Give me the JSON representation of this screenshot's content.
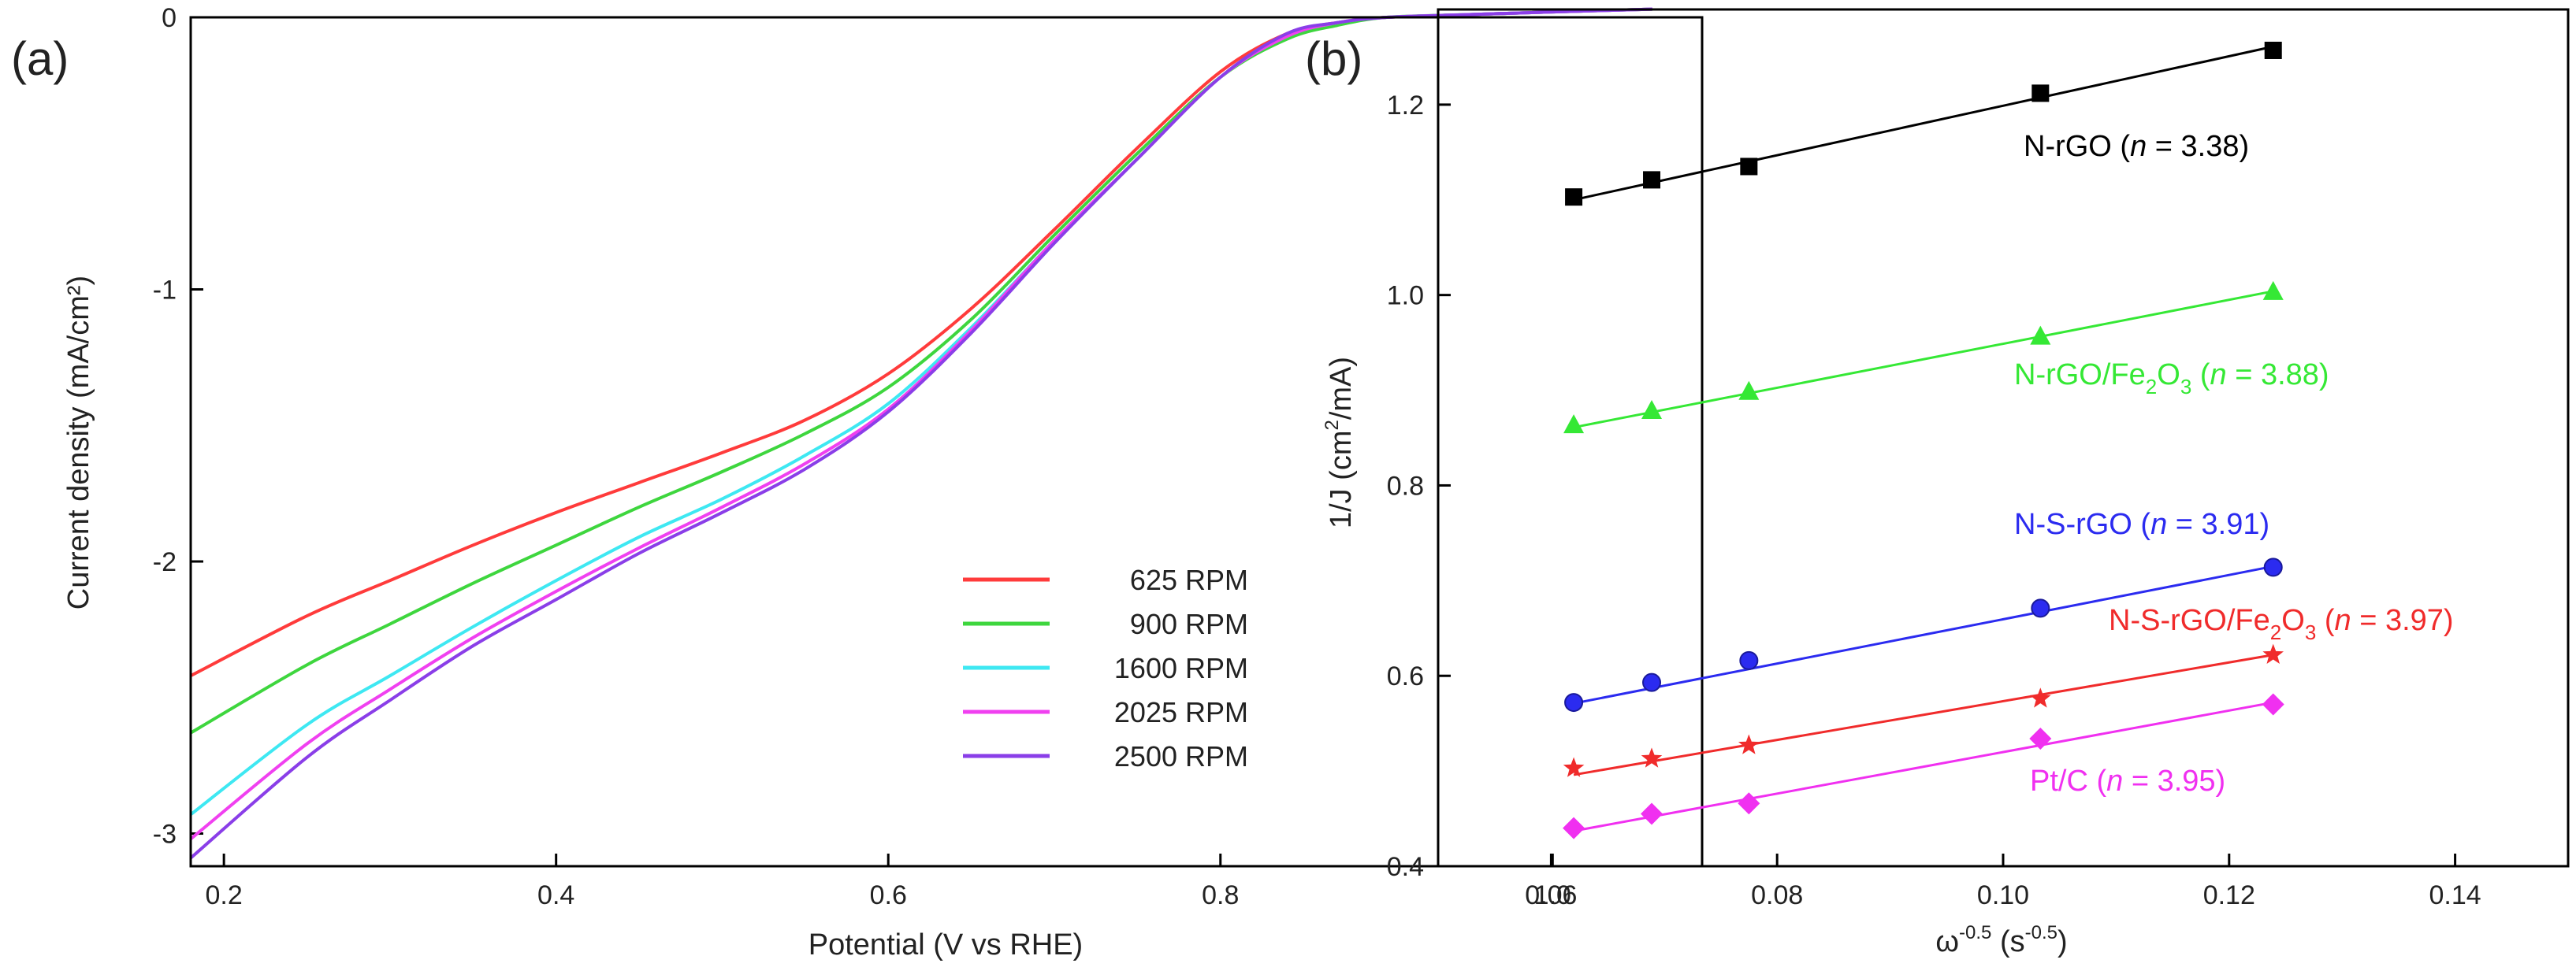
{
  "chart_data": [
    {
      "panel": "(a)",
      "type": "line",
      "title": "",
      "xlabel": "Potential (V vs RHE)",
      "ylabel": "Current density (mA/cm²)",
      "xlim": [
        0.18,
        1.09
      ],
      "ylim": [
        -3.12,
        0.0
      ],
      "x_ticks": [
        0.2,
        0.4,
        0.6,
        0.8,
        1.0
      ],
      "x_tick_labels": [
        "0.2",
        "0.4",
        "0.6",
        "0.8",
        "1.0"
      ],
      "y_ticks": [
        0,
        -1,
        -2,
        -3
      ],
      "y_tick_labels": [
        "0",
        "-1",
        "-2",
        "-3"
      ],
      "legend_position": "bottom-right",
      "series": [
        {
          "name": "625 RPM",
          "color": "#ff3b3b",
          "x": [
            0.18,
            0.25,
            0.3,
            0.35,
            0.4,
            0.45,
            0.5,
            0.55,
            0.6,
            0.65,
            0.7,
            0.75,
            0.8,
            0.84,
            0.87,
            0.9,
            0.95,
            1.0,
            1.06
          ],
          "y": [
            -2.42,
            -2.2,
            -2.07,
            -1.94,
            -1.82,
            -1.71,
            -1.6,
            -1.48,
            -1.31,
            -1.07,
            -0.78,
            -0.48,
            -0.2,
            -0.06,
            -0.02,
            0.0,
            0.01,
            0.02,
            0.03
          ]
        },
        {
          "name": "900 RPM",
          "color": "#3ed63e",
          "x": [
            0.18,
            0.25,
            0.3,
            0.35,
            0.4,
            0.45,
            0.5,
            0.55,
            0.6,
            0.65,
            0.7,
            0.75,
            0.8,
            0.84,
            0.87,
            0.9,
            0.95,
            1.0,
            1.06
          ],
          "y": [
            -2.63,
            -2.38,
            -2.23,
            -2.08,
            -1.94,
            -1.8,
            -1.67,
            -1.53,
            -1.36,
            -1.11,
            -0.8,
            -0.5,
            -0.22,
            -0.08,
            -0.03,
            0.0,
            0.01,
            0.02,
            0.03
          ]
        },
        {
          "name": "1600 RPM",
          "color": "#3ee8f2",
          "x": [
            0.18,
            0.25,
            0.3,
            0.35,
            0.4,
            0.45,
            0.5,
            0.55,
            0.6,
            0.65,
            0.7,
            0.75,
            0.8,
            0.84,
            0.87,
            0.9,
            0.95,
            1.0,
            1.06
          ],
          "y": [
            -2.93,
            -2.6,
            -2.42,
            -2.24,
            -2.07,
            -1.91,
            -1.77,
            -1.61,
            -1.42,
            -1.14,
            -0.82,
            -0.52,
            -0.22,
            -0.07,
            -0.02,
            0.0,
            0.01,
            0.02,
            0.03
          ]
        },
        {
          "name": "2025 RPM",
          "color": "#f040f0",
          "x": [
            0.18,
            0.25,
            0.3,
            0.35,
            0.4,
            0.45,
            0.5,
            0.55,
            0.6,
            0.65,
            0.7,
            0.75,
            0.8,
            0.84,
            0.87,
            0.9,
            0.95,
            1.0,
            1.06
          ],
          "y": [
            -3.02,
            -2.67,
            -2.47,
            -2.28,
            -2.11,
            -1.95,
            -1.8,
            -1.64,
            -1.44,
            -1.15,
            -0.82,
            -0.52,
            -0.22,
            -0.07,
            -0.02,
            0.0,
            0.01,
            0.02,
            0.03
          ]
        },
        {
          "name": "2500 RPM",
          "color": "#8a3ee8",
          "x": [
            0.18,
            0.25,
            0.3,
            0.35,
            0.4,
            0.45,
            0.5,
            0.55,
            0.6,
            0.65,
            0.7,
            0.75,
            0.8,
            0.84,
            0.87,
            0.9,
            0.95,
            1.0,
            1.06
          ],
          "y": [
            -3.09,
            -2.72,
            -2.51,
            -2.31,
            -2.14,
            -1.97,
            -1.82,
            -1.66,
            -1.45,
            -1.16,
            -0.83,
            -0.52,
            -0.22,
            -0.06,
            -0.02,
            0.0,
            0.01,
            0.02,
            0.03
          ]
        }
      ]
    },
    {
      "panel": "(b)",
      "type": "scatter",
      "title": "",
      "xlabel_base": "ω",
      "xlabel_exp": "-0.5",
      "xlabel_unit_open": " (s",
      "xlabel_unit_exp": "-0.5",
      "xlabel_unit_close": ")",
      "ylabel_pre": "1/J (cm",
      "ylabel_exp": "2",
      "ylabel_post": "/mA)",
      "xlim": [
        0.05,
        0.15
      ],
      "ylim": [
        0.4,
        1.3
      ],
      "x_ticks": [
        0.06,
        0.08,
        0.1,
        0.12,
        0.14
      ],
      "x_tick_labels": [
        "0.06",
        "0.08",
        "0.10",
        "0.12",
        "0.14"
      ],
      "y_ticks": [
        0.4,
        0.6,
        0.8,
        1.0,
        1.2
      ],
      "y_tick_labels": [
        "0.4",
        "0.6",
        "0.8",
        "1.0",
        "1.2"
      ],
      "series": [
        {
          "name": "N-rGO",
          "n_label": "n",
          "n_value": " = 3.38",
          "color": "#000000",
          "marker": "square",
          "x": [
            0.062,
            0.0689,
            0.0775,
            0.1033,
            0.1239
          ],
          "y": [
            1.103,
            1.121,
            1.135,
            1.212,
            1.257
          ],
          "fit": [
            [
              0.062,
              1.1
            ],
            [
              0.1239,
              1.261
            ]
          ]
        },
        {
          "name": "N-rGO/Fe",
          "sub": "2",
          "name_tail": "O",
          "sub2": "3",
          "n_label": "n",
          "n_value": " = 3.88",
          "color": "#35e835",
          "marker": "triangle",
          "x": [
            0.062,
            0.0689,
            0.0775,
            0.1033,
            0.1239
          ],
          "y": [
            0.864,
            0.879,
            0.899,
            0.957,
            1.004
          ],
          "fit": [
            [
              0.062,
              0.861
            ],
            [
              0.1239,
              1.004
            ]
          ]
        },
        {
          "name": "N-S-rGO",
          "n_label": "n",
          "n_value": " = 3.91",
          "color": "#2b2bf0",
          "marker": "circle",
          "x": [
            0.062,
            0.0689,
            0.0775,
            0.1033,
            0.1239
          ],
          "y": [
            0.572,
            0.593,
            0.616,
            0.671,
            0.714
          ],
          "fit": [
            [
              0.062,
              0.571
            ],
            [
              0.1239,
              0.715
            ]
          ]
        },
        {
          "name": "N-S-rGO/Fe",
          "sub": "2",
          "name_tail": "O",
          "sub2": "3",
          "n_label": "n",
          "n_value": " = 3.97",
          "color": "#f02b2b",
          "marker": "star",
          "x": [
            0.062,
            0.0689,
            0.0775,
            0.1033,
            0.1239
          ],
          "y": [
            0.503,
            0.513,
            0.527,
            0.576,
            0.622
          ],
          "fit": [
            [
              0.062,
              0.496
            ],
            [
              0.1239,
              0.622
            ]
          ]
        },
        {
          "name": "Pt/C",
          "n_label": "n",
          "n_value": " = 3.95",
          "color": "#f030f0",
          "marker": "diamond",
          "x": [
            0.062,
            0.0689,
            0.0775,
            0.1033,
            0.1239
          ],
          "y": [
            0.44,
            0.455,
            0.466,
            0.534,
            0.57
          ],
          "fit": [
            [
              0.062,
              0.437
            ],
            [
              0.1239,
              0.572
            ]
          ]
        }
      ]
    }
  ]
}
